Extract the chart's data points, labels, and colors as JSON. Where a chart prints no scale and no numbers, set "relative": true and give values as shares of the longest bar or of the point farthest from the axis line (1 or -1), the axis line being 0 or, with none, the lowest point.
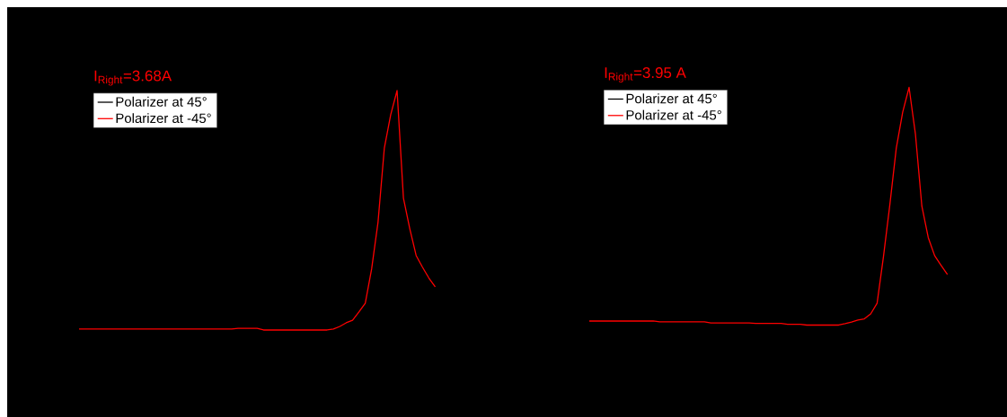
{
  "chart_data": [
    {
      "type": "line",
      "relative": true,
      "legend": "top left",
      "annotations": [
        "I$_{Right}$=3.68A"
      ],
      "categories": [
        null,
        null,
        null,
        null,
        null,
        null,
        null,
        null,
        null,
        null,
        null,
        null,
        null,
        null,
        null,
        null,
        null,
        null,
        null,
        null,
        null,
        null,
        null,
        null,
        null,
        null,
        null,
        null,
        null,
        null,
        null,
        null,
        null,
        null,
        null,
        null,
        null,
        null,
        null,
        null,
        null,
        null,
        null,
        null,
        null,
        null,
        null,
        null,
        null,
        null,
        null,
        null,
        null,
        null,
        null,
        null,
        null
      ],
      "series": [
        {
          "name": "Polarizer at 45°",
          "color": "#000000",
          "values": [
            null,
            null,
            null,
            null,
            null,
            null,
            null,
            null,
            null,
            null,
            null,
            null,
            null,
            null,
            null,
            null,
            null,
            null,
            null,
            null,
            null,
            null,
            null,
            null,
            null,
            null,
            null,
            null,
            null,
            null,
            null,
            null,
            null,
            null,
            null,
            null,
            null,
            null,
            null,
            null,
            null,
            null,
            null,
            null,
            null,
            null,
            null,
            null,
            null,
            null,
            null,
            null,
            null,
            null,
            null,
            null,
            null
          ]
        },
        {
          "name": "Polarizer at -45°",
          "color": "#ff0000",
          "values": [
            0.004,
            0.004,
            0.004,
            0.004,
            0.004,
            0.004,
            0.004,
            0.004,
            0.004,
            0.004,
            0.004,
            0.004,
            0.004,
            0.004,
            0.004,
            0.004,
            0.004,
            0.004,
            0.004,
            0.004,
            0.004,
            0.004,
            0.004,
            0.004,
            0.004,
            0.007,
            0.007,
            0.007,
            0.007,
            0,
            0,
            0,
            0,
            0,
            0,
            0,
            0,
            0,
            0,
            0,
            0.004,
            0.015,
            0.03,
            0.041,
            0.075,
            0.112,
            0.255,
            0.449,
            0.76,
            0.899,
            1,
            0.551,
            0.423,
            0.311,
            0.262,
            0.217,
            0.18
          ]
        }
      ]
    },
    {
      "type": "line",
      "relative": true,
      "legend": "top left",
      "annotations": [
        "I$_{Right}$=3.95 A"
      ],
      "categories": [
        null,
        null,
        null,
        null,
        null,
        null,
        null,
        null,
        null,
        null,
        null,
        null,
        null,
        null,
        null,
        null,
        null,
        null,
        null,
        null,
        null,
        null,
        null,
        null,
        null,
        null,
        null,
        null,
        null,
        null,
        null,
        null,
        null,
        null,
        null,
        null,
        null,
        null,
        null,
        null,
        null,
        null,
        null,
        null,
        null,
        null,
        null,
        null,
        null,
        null,
        null,
        null,
        null,
        null,
        null,
        null,
        null
      ],
      "series": [
        {
          "name": "Polarizer at 45°",
          "color": "#000000",
          "values": [
            null,
            null,
            null,
            null,
            null,
            null,
            null,
            null,
            null,
            null,
            null,
            null,
            null,
            null,
            null,
            null,
            null,
            null,
            null,
            null,
            null,
            null,
            null,
            null,
            null,
            null,
            null,
            null,
            null,
            null,
            null,
            null,
            null,
            null,
            null,
            null,
            null,
            null,
            null,
            null,
            null,
            null,
            null,
            null,
            null,
            null,
            null,
            null,
            null,
            null,
            null,
            null,
            null,
            null,
            null,
            null,
            null
          ]
        },
        {
          "name": "Polarizer at -45°",
          "color": "#ff0000",
          "values": [
            0.017,
            0.017,
            0.017,
            0.017,
            0.017,
            0.017,
            0.017,
            0.017,
            0.017,
            0.017,
            0.017,
            0.014,
            0.014,
            0.014,
            0.014,
            0.014,
            0.014,
            0.014,
            0.014,
            0.009,
            0.009,
            0.009,
            0.009,
            0.009,
            0.009,
            0.009,
            0.007,
            0.007,
            0.007,
            0.007,
            0.007,
            0.003,
            0.003,
            0.003,
            0,
            0,
            0,
            0,
            0,
            0,
            0.006,
            0.013,
            0.021,
            0.026,
            0.047,
            0.092,
            0.289,
            0.508,
            0.745,
            0.896,
            1,
            0.802,
            0.5,
            0.368,
            0.292,
            0.251,
            0.213
          ]
        }
      ]
    }
  ]
}
